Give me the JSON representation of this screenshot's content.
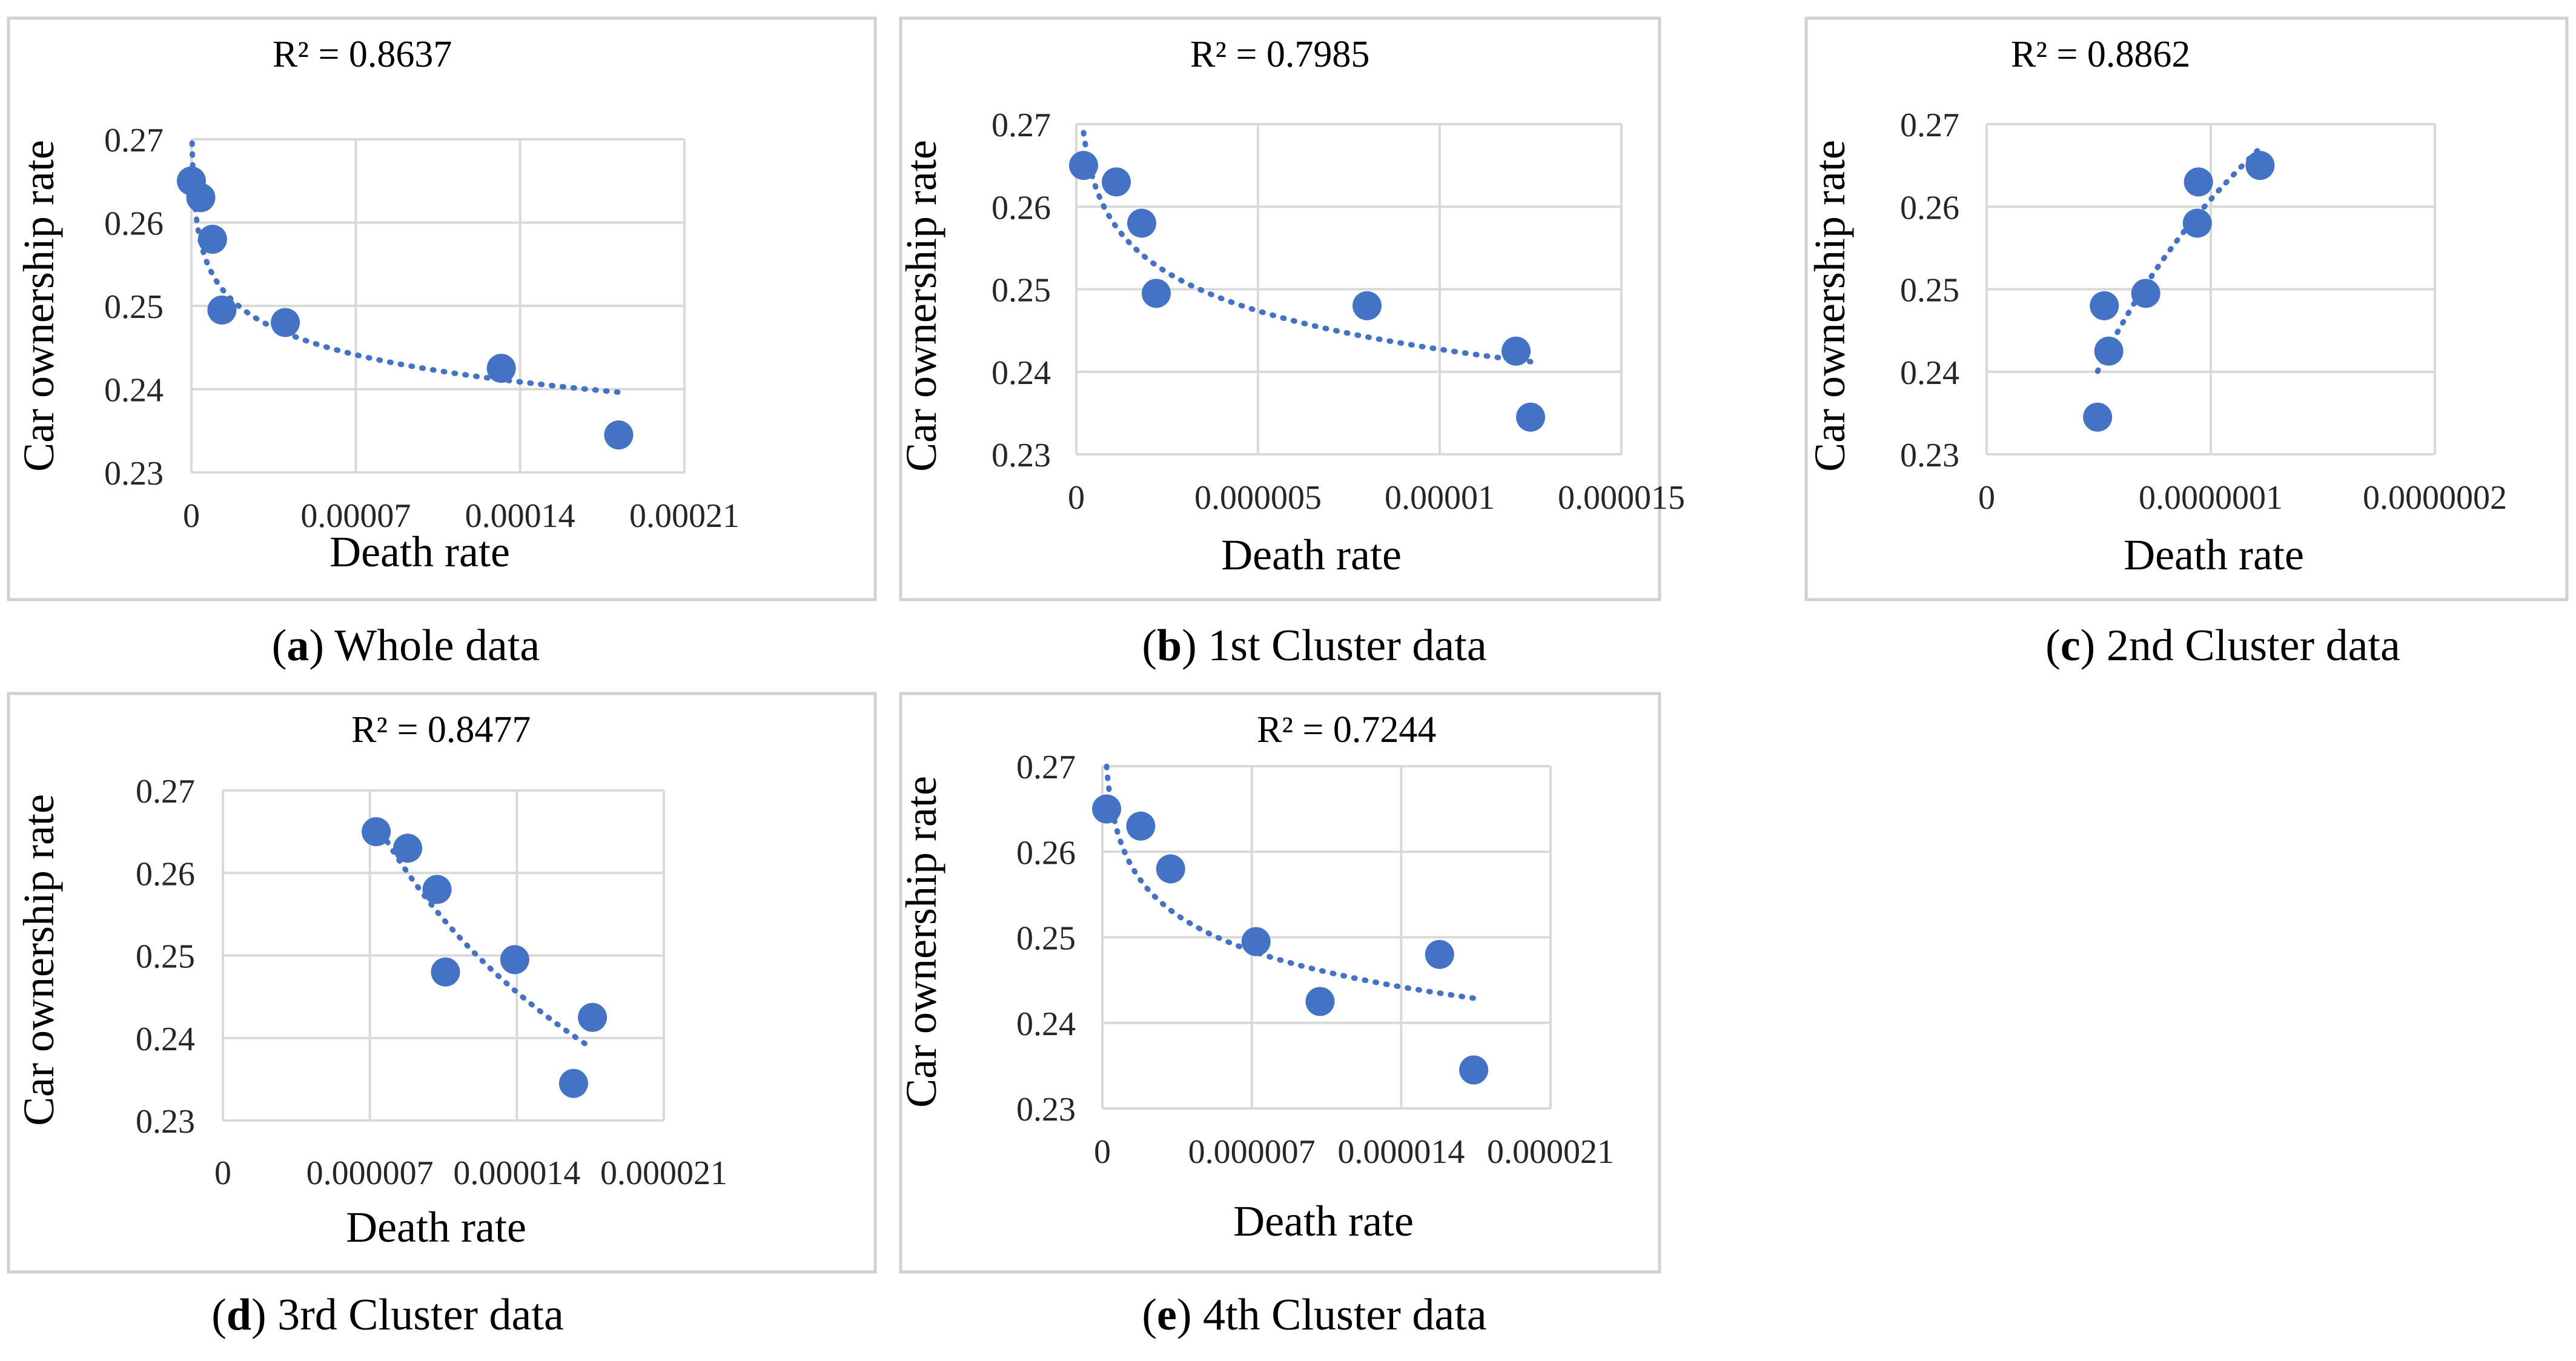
{
  "colors": {
    "marker": "#4472c4",
    "trend": "#4472c4",
    "grid": "#d9d9d9",
    "frame": "#d0d0d0"
  },
  "chart_data": [
    {
      "type": "scatter",
      "caption_letter": "a",
      "caption_text": " Whole data",
      "annotation": "R² = 0.8637",
      "xlabel": "Death rate",
      "ylabel": "Car ownership rate",
      "xlim": [
        0,
        0.00021
      ],
      "ylim": [
        0.23,
        0.27
      ],
      "xticks": [
        "0",
        "0.00007",
        "0.00014",
        "0.00021"
      ],
      "yticks": [
        "0.23",
        "0.24",
        "0.25",
        "0.26",
        "0.27"
      ],
      "x": [
        0.0,
        4e-06,
        9e-06,
        1.3e-05,
        4e-05,
        0.000132,
        0.000182
      ],
      "y": [
        0.265,
        0.263,
        0.258,
        0.2495,
        0.248,
        0.2425,
        0.2345
      ],
      "trendline": "logarithmic"
    },
    {
      "type": "scatter",
      "caption_letter": "b",
      "caption_text": " 1st Cluster data",
      "annotation": "R² = 0.7985",
      "xlabel": "Death rate",
      "ylabel": "Car ownership rate",
      "xlim": [
        0,
        1.5e-05
      ],
      "ylim": [
        0.23,
        0.27
      ],
      "xticks": [
        "0",
        "0.000005",
        "0.00001",
        "0.000015"
      ],
      "yticks": [
        "0.23",
        "0.24",
        "0.25",
        "0.26",
        "0.27"
      ],
      "x": [
        2e-07,
        1.1e-06,
        1.8e-06,
        2.2e-06,
        8e-06,
        1.21e-05,
        1.25e-05
      ],
      "y": [
        0.265,
        0.263,
        0.258,
        0.2495,
        0.248,
        0.2425,
        0.2345
      ],
      "trendline": "logarithmic"
    },
    {
      "type": "scatter",
      "caption_letter": "c",
      "caption_text": " 2nd Cluster data",
      "annotation": "R² = 0.8862",
      "xlabel": "Death rate",
      "ylabel": "Car ownership rate",
      "xlim": [
        0,
        2e-07
      ],
      "ylim": [
        0.23,
        0.27
      ],
      "xticks": [
        "0",
        "0.0000001",
        "0.0000002"
      ],
      "yticks": [
        "0.23",
        "0.24",
        "0.25",
        "0.26",
        "0.27"
      ],
      "x": [
        4.95e-08,
        5.25e-08,
        5.45e-08,
        7.1e-08,
        9.4e-08,
        9.45e-08,
        1.22e-07
      ],
      "y": [
        0.2345,
        0.248,
        0.2425,
        0.2495,
        0.258,
        0.263,
        0.265
      ],
      "trendline": "power"
    },
    {
      "type": "scatter",
      "caption_letter": "d",
      "caption_text": " 3rd Cluster data",
      "annotation": "R² = 0.8477",
      "xlabel": "Death rate",
      "ylabel": "Car ownership rate",
      "xlim": [
        0,
        2.1e-05
      ],
      "ylim": [
        0.23,
        0.27
      ],
      "xticks": [
        "0",
        "0.000007",
        "0.000014",
        "0.000021"
      ],
      "yticks": [
        "0.23",
        "0.24",
        "0.25",
        "0.26",
        "0.27"
      ],
      "x": [
        7.3e-06,
        8.8e-06,
        1.02e-05,
        1.06e-05,
        1.39e-05,
        1.67e-05,
        1.76e-05
      ],
      "y": [
        0.265,
        0.263,
        0.258,
        0.248,
        0.2495,
        0.2345,
        0.2425
      ],
      "trendline": "power"
    },
    {
      "type": "scatter",
      "caption_letter": "e",
      "caption_text": " 4th Cluster data",
      "annotation": "R² = 0.7244",
      "xlabel": "Death rate",
      "ylabel": "Car ownership rate",
      "xlim": [
        0,
        2.1e-05
      ],
      "ylim": [
        0.23,
        0.27
      ],
      "xticks": [
        "0",
        "0.000007",
        "0.000014",
        "0.000021"
      ],
      "yticks": [
        "0.23",
        "0.24",
        "0.25",
        "0.26",
        "0.27"
      ],
      "x": [
        2e-07,
        1.8e-06,
        3.2e-06,
        7.2e-06,
        1.02e-05,
        1.58e-05,
        1.74e-05
      ],
      "y": [
        0.265,
        0.263,
        0.258,
        0.2495,
        0.2425,
        0.248,
        0.2345
      ],
      "trendline": "logarithmic"
    }
  ]
}
